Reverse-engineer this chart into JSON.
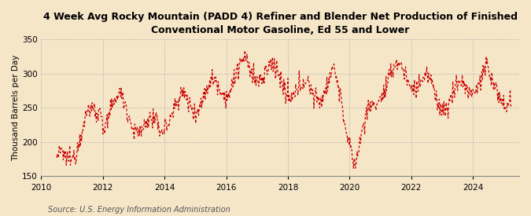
{
  "title": "4 Week Avg Rocky Mountain (PADD 4) Refiner and Blender Net Production of Finished\nConventional Motor Gasoline, Ed 55 and Lower",
  "ylabel": "Thousand Barrels per Day",
  "source": "Source: U.S. Energy Information Administration",
  "line_color": "#cc0000",
  "background_color": "#f5e6c8",
  "plot_background": "#f5e6c8",
  "grid_color": "#aaaaaa",
  "ylim": [
    150,
    350
  ],
  "yticks": [
    150,
    200,
    250,
    300,
    350
  ],
  "title_fontsize": 9.0,
  "ylabel_fontsize": 7.5,
  "tick_fontsize": 7.5,
  "source_fontsize": 7.0
}
